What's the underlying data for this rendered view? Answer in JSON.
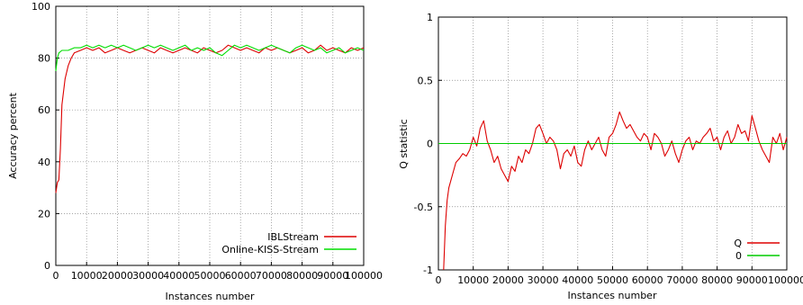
{
  "chart_data": [
    {
      "type": "line",
      "title": "",
      "xlabel": "Instances number",
      "ylabel": "Accuracy percent",
      "xlim": [
        0,
        100000
      ],
      "ylim": [
        0,
        100
      ],
      "xticks": [
        0,
        10000,
        20000,
        30000,
        40000,
        50000,
        60000,
        70000,
        80000,
        90000,
        100000
      ],
      "xtick_labels": [
        "0",
        "10000",
        "20000",
        "30000",
        "40000",
        "50000",
        "60000",
        "70000",
        "80000",
        "90000",
        "100000"
      ],
      "yticks": [
        0,
        20,
        40,
        60,
        80,
        100
      ],
      "ytick_labels": [
        "0",
        "20",
        "40",
        "60",
        "80",
        "100"
      ],
      "grid": true,
      "legend": "bottom-right",
      "series": [
        {
          "name": "IBLStream",
          "color": "#dd0000",
          "x": [
            0,
            500,
            1000,
            1500,
            2000,
            3000,
            4000,
            5000,
            6000,
            8000,
            10000,
            12000,
            14000,
            16000,
            18000,
            20000,
            22000,
            24000,
            26000,
            28000,
            30000,
            32000,
            34000,
            36000,
            38000,
            40000,
            42000,
            44000,
            46000,
            48000,
            50000,
            52000,
            54000,
            56000,
            58000,
            60000,
            62000,
            64000,
            66000,
            68000,
            70000,
            72000,
            74000,
            76000,
            78000,
            80000,
            82000,
            84000,
            86000,
            88000,
            90000,
            92000,
            94000,
            96000,
            98000,
            100000
          ],
          "y": [
            28,
            32,
            33,
            45,
            62,
            72,
            77,
            80,
            82,
            83,
            84,
            83,
            84,
            82,
            83,
            84,
            83,
            82,
            83,
            84,
            83,
            82,
            84,
            83,
            82,
            83,
            84,
            83,
            82,
            84,
            83,
            82,
            83,
            85,
            84,
            83,
            84,
            83,
            82,
            84,
            83,
            84,
            83,
            82,
            83,
            84,
            82,
            83,
            85,
            83,
            84,
            83,
            82,
            84,
            83,
            84
          ]
        },
        {
          "name": "Online-KISS-Stream",
          "color": "#00dd00",
          "x": [
            0,
            500,
            1000,
            2000,
            4000,
            6000,
            8000,
            10000,
            12000,
            14000,
            16000,
            18000,
            20000,
            22000,
            24000,
            26000,
            28000,
            30000,
            32000,
            34000,
            36000,
            38000,
            40000,
            42000,
            44000,
            46000,
            48000,
            50000,
            52000,
            54000,
            56000,
            58000,
            60000,
            62000,
            64000,
            66000,
            68000,
            70000,
            72000,
            74000,
            76000,
            78000,
            80000,
            82000,
            84000,
            86000,
            88000,
            90000,
            92000,
            94000,
            96000,
            98000,
            100000
          ],
          "y": [
            75,
            80,
            82,
            83,
            83,
            84,
            84,
            85,
            84,
            85,
            84,
            85,
            84,
            85,
            84,
            83,
            84,
            85,
            84,
            85,
            84,
            83,
            84,
            85,
            83,
            84,
            83,
            84,
            82,
            81,
            83,
            85,
            84,
            85,
            84,
            83,
            84,
            85,
            84,
            83,
            82,
            84,
            85,
            84,
            83,
            84,
            82,
            83,
            84,
            82,
            83,
            84,
            83
          ]
        }
      ]
    },
    {
      "type": "line",
      "title": "",
      "xlabel": "Instances number",
      "ylabel": "Q statistic",
      "xlim": [
        0,
        100000
      ],
      "ylim": [
        -1,
        1
      ],
      "xticks": [
        0,
        10000,
        20000,
        30000,
        40000,
        50000,
        60000,
        70000,
        80000,
        90000,
        100000
      ],
      "xtick_labels": [
        "0",
        "10000",
        "20000",
        "30000",
        "40000",
        "50000",
        "60000",
        "70000",
        "80000",
        "90000",
        "100000"
      ],
      "yticks": [
        -1,
        -0.5,
        0,
        0.5,
        1
      ],
      "ytick_labels": [
        "-1",
        "-0.5",
        "0",
        "0.5",
        "1"
      ],
      "grid": true,
      "legend": "bottom-right",
      "series": [
        {
          "name": "Q",
          "color": "#dd0000",
          "x": [
            1500,
            2000,
            2500,
            3000,
            4000,
            5000,
            6000,
            7000,
            8000,
            9000,
            10000,
            11000,
            12000,
            13000,
            14000,
            15000,
            16000,
            17000,
            18000,
            19000,
            20000,
            21000,
            22000,
            23000,
            24000,
            25000,
            26000,
            27000,
            28000,
            29000,
            30000,
            31000,
            32000,
            33000,
            34000,
            35000,
            36000,
            37000,
            38000,
            39000,
            40000,
            41000,
            42000,
            43000,
            44000,
            45000,
            46000,
            47000,
            48000,
            49000,
            50000,
            51000,
            52000,
            53000,
            54000,
            55000,
            56000,
            57000,
            58000,
            59000,
            60000,
            61000,
            62000,
            63000,
            64000,
            65000,
            66000,
            67000,
            68000,
            69000,
            70000,
            71000,
            72000,
            73000,
            74000,
            75000,
            76000,
            77000,
            78000,
            79000,
            80000,
            81000,
            82000,
            83000,
            84000,
            85000,
            86000,
            87000,
            88000,
            89000,
            90000,
            91000,
            92000,
            93000,
            94000,
            95000,
            96000,
            97000,
            98000,
            99000,
            100000
          ],
          "y": [
            -1,
            -0.65,
            -0.45,
            -0.35,
            -0.25,
            -0.15,
            -0.12,
            -0.08,
            -0.1,
            -0.05,
            0.05,
            -0.02,
            0.12,
            0.18,
            0.02,
            -0.05,
            -0.15,
            -0.1,
            -0.2,
            -0.25,
            -0.3,
            -0.18,
            -0.22,
            -0.1,
            -0.15,
            -0.05,
            -0.08,
            0.0,
            0.12,
            0.15,
            0.08,
            0.0,
            0.05,
            0.02,
            -0.05,
            -0.2,
            -0.08,
            -0.05,
            -0.1,
            -0.02,
            -0.15,
            -0.18,
            -0.05,
            0.02,
            -0.05,
            0.0,
            0.05,
            -0.05,
            -0.1,
            0.05,
            0.08,
            0.15,
            0.25,
            0.18,
            0.12,
            0.15,
            0.1,
            0.05,
            0.02,
            0.08,
            0.05,
            -0.05,
            0.08,
            0.05,
            0.0,
            -0.1,
            -0.05,
            0.02,
            -0.08,
            -0.15,
            -0.05,
            0.02,
            0.05,
            -0.05,
            0.02,
            0.0,
            0.05,
            0.08,
            0.12,
            0.02,
            0.05,
            -0.05,
            0.05,
            0.1,
            0.0,
            0.05,
            0.15,
            0.08,
            0.1,
            0.02,
            0.22,
            0.12,
            0.02,
            -0.05,
            -0.1,
            -0.15,
            0.05,
            0.0,
            0.08,
            -0.05,
            0.05
          ]
        },
        {
          "name": "0",
          "color": "#00cc00",
          "x": [
            0,
            100000
          ],
          "y": [
            0,
            0
          ]
        }
      ]
    }
  ]
}
